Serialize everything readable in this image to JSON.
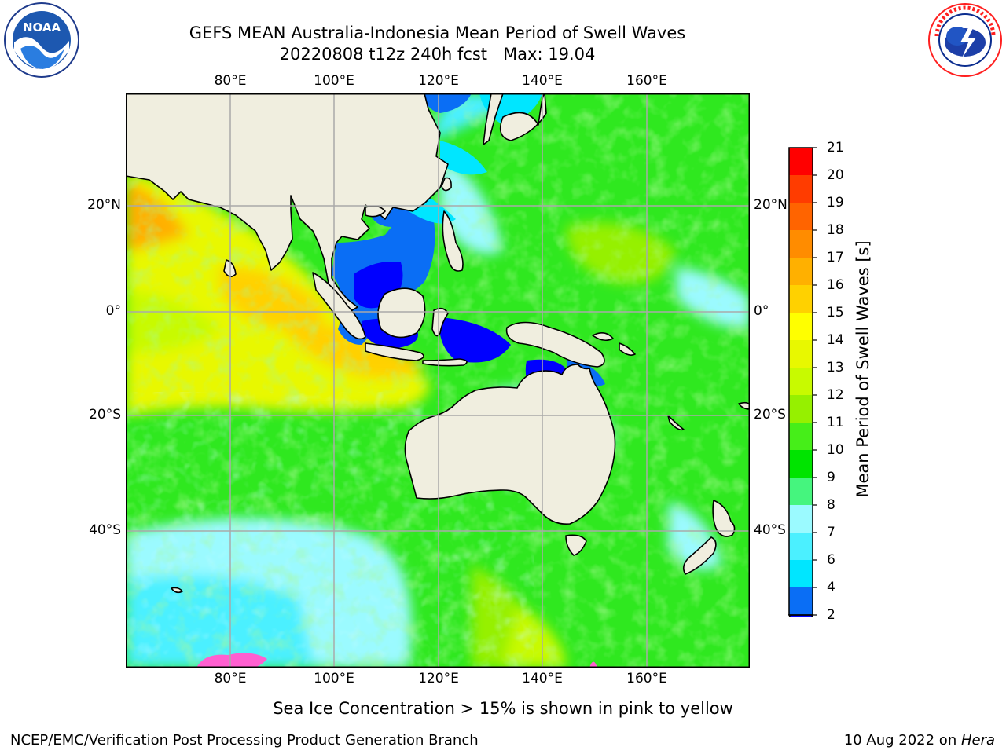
{
  "title": {
    "line1": "GEFS MEAN Australia-Indonesia Mean Period of Swell Waves",
    "line2": "20220808 t12z 240h fcst   Max: 19.04"
  },
  "logos": {
    "left": "NOAA",
    "left_ring": "NATIONAL OCEANIC AND ATMOSPHERIC ADMINISTRATION · U.S. DEPARTMENT OF COMMERCE",
    "right_ring": "NATIONAL WEATHER SERVICE"
  },
  "lon_ticks": [
    "80°E",
    "100°E",
    "120°E",
    "140°E",
    "160°E"
  ],
  "lat_ticks": [
    "20°N",
    "0°",
    "20°S",
    "40°S"
  ],
  "colorbar": {
    "label": "Mean Period of Swell Waves [s]",
    "levels": [
      "2",
      "4",
      "6",
      "7",
      "8",
      "9",
      "10",
      "11",
      "12",
      "13",
      "14",
      "15",
      "16",
      "17",
      "18",
      "19",
      "20",
      "21"
    ],
    "colors": [
      "#0000ff",
      "#0a6ef5",
      "#00e6ff",
      "#4bf0ff",
      "#9bfaff",
      "#45f57e",
      "#00e400",
      "#46ee19",
      "#96f000",
      "#c8fa00",
      "#e8f800",
      "#ffff00",
      "#ffd100",
      "#ffb000",
      "#ff8c00",
      "#ff6400",
      "#ff3c00",
      "#ff0000"
    ]
  },
  "note": "Sea Ice Concentration > 15% is shown in pink to yellow",
  "footer": {
    "left": "NCEP/EMC/Verification Post Processing Product Generation Branch",
    "date": "10 Aug 2022 on ",
    "machine": "Hera"
  }
}
